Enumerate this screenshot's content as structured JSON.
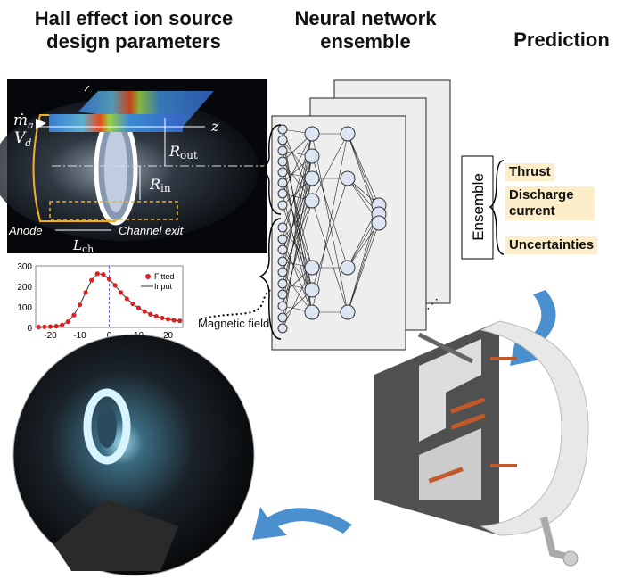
{
  "headings": {
    "design_line1": "Hall effect ion source",
    "design_line2": "design parameters",
    "nn_line1": "Neural network",
    "nn_line2": "ensemble",
    "prediction": "Prediction"
  },
  "schematic": {
    "mass_flow": "ṁ",
    "mass_flow_sub": "a",
    "voltage": "V",
    "voltage_sub": "d",
    "z_axis": "z",
    "r_out": "R",
    "r_out_sub": "out",
    "r_in": "R",
    "r_in_sub": "in",
    "anode": "Anode",
    "channel_exit": "Channel exit",
    "l_ch": "L",
    "l_ch_sub": "ch"
  },
  "magnetic_field_label": "Magnetic field",
  "ensemble_label": "Ensemble",
  "outputs": [
    "Thrust",
    "Discharge current",
    "Uncertainties"
  ],
  "colors": {
    "arrow_blue": "#4a90cf",
    "highlight": "#fdeec9",
    "fitted": "#e02020",
    "orange_ring": "#f0b020"
  },
  "chart_data": {
    "type": "scatter",
    "xlim": [
      -25,
      25
    ],
    "ylim": [
      0,
      300
    ],
    "xticks": [
      -20,
      -10,
      0,
      10,
      20
    ],
    "yticks": [
      0,
      100,
      200,
      300
    ],
    "legend": [
      "Fitted",
      "Input"
    ],
    "legend_placement": "top-right",
    "vline_x": 0,
    "x": [
      -24,
      -22,
      -20,
      -18,
      -16,
      -14,
      -12,
      -10,
      -8,
      -6,
      -4,
      -2,
      0,
      2,
      4,
      6,
      8,
      10,
      12,
      14,
      16,
      18,
      20,
      22,
      24
    ],
    "y": [
      2,
      3,
      4,
      6,
      12,
      28,
      60,
      110,
      170,
      230,
      262,
      258,
      235,
      205,
      170,
      140,
      115,
      95,
      78,
      64,
      54,
      46,
      40,
      35,
      32
    ]
  }
}
